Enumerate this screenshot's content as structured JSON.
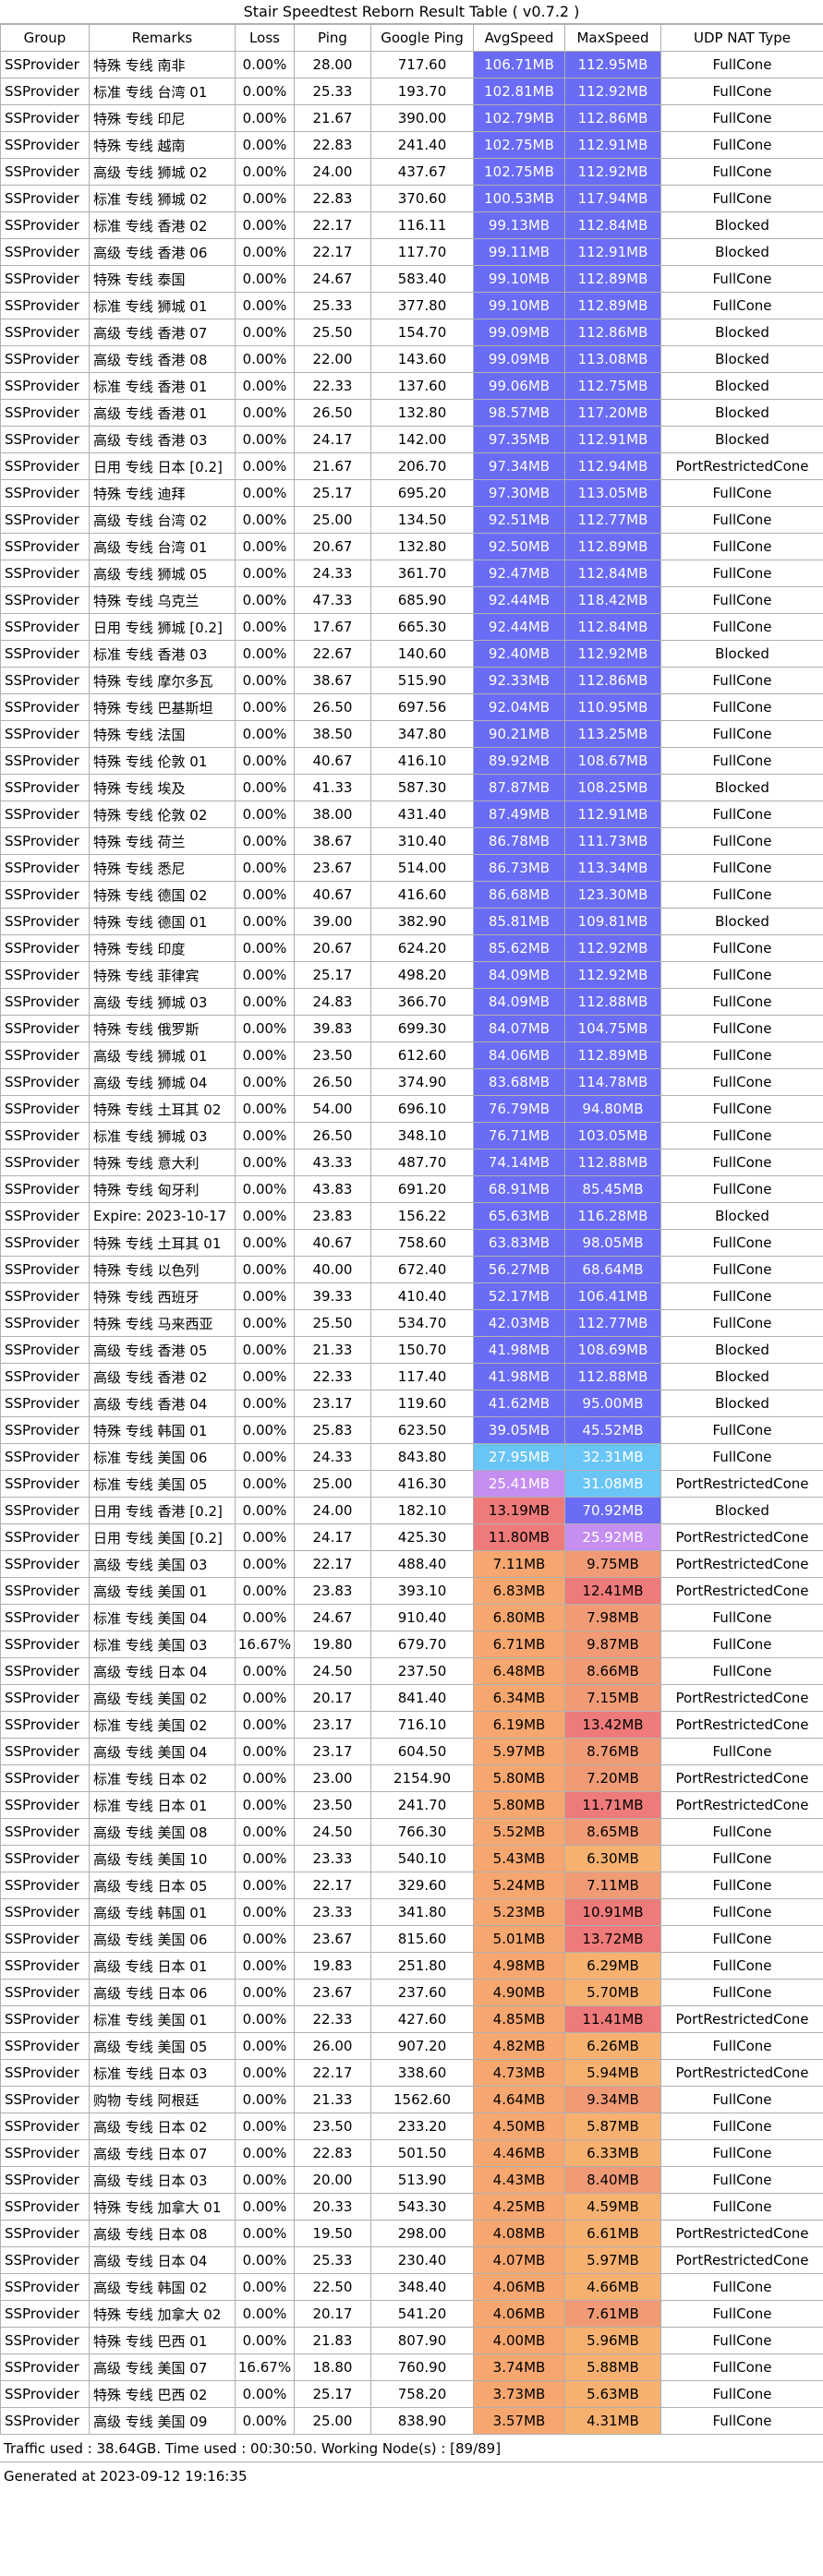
{
  "title": "Stair Speedtest Reborn Result Table ( v0.7.2 )",
  "columns": [
    "Group",
    "Remarks",
    "Loss",
    "Ping",
    "Google Ping",
    "AvgSpeed",
    "MaxSpeed",
    "UDP NAT Type"
  ],
  "colors": {
    "fast_blue": "#6a6cf5",
    "purple": "#c58ef0",
    "light_blue": "#69c5f5",
    "red": "#ee7a7a",
    "salmon": "#f19a76",
    "orange_deep": "#f6a66f",
    "orange": "#f6b170",
    "grid": "#b0b0b0"
  },
  "rows": [
    [
      "SSProvider",
      "特殊 专线 南非",
      "0.00%",
      "28.00",
      "717.60",
      "106.71MB",
      "112.95MB",
      "FullCone"
    ],
    [
      "SSProvider",
      "标准 专线 台湾 01",
      "0.00%",
      "25.33",
      "193.70",
      "102.81MB",
      "112.92MB",
      "FullCone"
    ],
    [
      "SSProvider",
      "特殊 专线 印尼",
      "0.00%",
      "21.67",
      "390.00",
      "102.79MB",
      "112.86MB",
      "FullCone"
    ],
    [
      "SSProvider",
      "特殊 专线 越南",
      "0.00%",
      "22.83",
      "241.40",
      "102.75MB",
      "112.91MB",
      "FullCone"
    ],
    [
      "SSProvider",
      "高级 专线 狮城 02",
      "0.00%",
      "24.00",
      "437.67",
      "102.75MB",
      "112.92MB",
      "FullCone"
    ],
    [
      "SSProvider",
      "标准 专线 狮城 02",
      "0.00%",
      "22.83",
      "370.60",
      "100.53MB",
      "117.94MB",
      "FullCone"
    ],
    [
      "SSProvider",
      "标准 专线 香港 02",
      "0.00%",
      "22.17",
      "116.11",
      "99.13MB",
      "112.84MB",
      "Blocked"
    ],
    [
      "SSProvider",
      "高级 专线 香港 06",
      "0.00%",
      "22.17",
      "117.70",
      "99.11MB",
      "112.91MB",
      "Blocked"
    ],
    [
      "SSProvider",
      "特殊 专线 泰国",
      "0.00%",
      "24.67",
      "583.40",
      "99.10MB",
      "112.89MB",
      "FullCone"
    ],
    [
      "SSProvider",
      "标准 专线 狮城 01",
      "0.00%",
      "25.33",
      "377.80",
      "99.10MB",
      "112.89MB",
      "FullCone"
    ],
    [
      "SSProvider",
      "高级 专线 香港 07",
      "0.00%",
      "25.50",
      "154.70",
      "99.09MB",
      "112.86MB",
      "Blocked"
    ],
    [
      "SSProvider",
      "高级 专线 香港 08",
      "0.00%",
      "22.00",
      "143.60",
      "99.09MB",
      "113.08MB",
      "Blocked"
    ],
    [
      "SSProvider",
      "标准 专线 香港 01",
      "0.00%",
      "22.33",
      "137.60",
      "99.06MB",
      "112.75MB",
      "Blocked"
    ],
    [
      "SSProvider",
      "高级 专线 香港 01",
      "0.00%",
      "26.50",
      "132.80",
      "98.57MB",
      "117.20MB",
      "Blocked"
    ],
    [
      "SSProvider",
      "高级 专线 香港 03",
      "0.00%",
      "24.17",
      "142.00",
      "97.35MB",
      "112.91MB",
      "Blocked"
    ],
    [
      "SSProvider",
      "日用 专线 日本 [0.2]",
      "0.00%",
      "21.67",
      "206.70",
      "97.34MB",
      "112.94MB",
      "PortRestrictedCone"
    ],
    [
      "SSProvider",
      "特殊 专线 迪拜",
      "0.00%",
      "25.17",
      "695.20",
      "97.30MB",
      "113.05MB",
      "FullCone"
    ],
    [
      "SSProvider",
      "高级 专线 台湾 02",
      "0.00%",
      "25.00",
      "134.50",
      "92.51MB",
      "112.77MB",
      "FullCone"
    ],
    [
      "SSProvider",
      "高级 专线 台湾 01",
      "0.00%",
      "20.67",
      "132.80",
      "92.50MB",
      "112.89MB",
      "FullCone"
    ],
    [
      "SSProvider",
      "高级 专线 狮城 05",
      "0.00%",
      "24.33",
      "361.70",
      "92.47MB",
      "112.84MB",
      "FullCone"
    ],
    [
      "SSProvider",
      "特殊 专线 乌克兰",
      "0.00%",
      "47.33",
      "685.90",
      "92.44MB",
      "118.42MB",
      "FullCone"
    ],
    [
      "SSProvider",
      "日用 专线 狮城 [0.2]",
      "0.00%",
      "17.67",
      "665.30",
      "92.44MB",
      "112.84MB",
      "FullCone"
    ],
    [
      "SSProvider",
      "标准 专线 香港 03",
      "0.00%",
      "22.67",
      "140.60",
      "92.40MB",
      "112.92MB",
      "Blocked"
    ],
    [
      "SSProvider",
      "特殊 专线 摩尔多瓦",
      "0.00%",
      "38.67",
      "515.90",
      "92.33MB",
      "112.86MB",
      "FullCone"
    ],
    [
      "SSProvider",
      "特殊 专线 巴基斯坦",
      "0.00%",
      "26.50",
      "697.56",
      "92.04MB",
      "110.95MB",
      "FullCone"
    ],
    [
      "SSProvider",
      "特殊 专线 法国",
      "0.00%",
      "38.50",
      "347.80",
      "90.21MB",
      "113.25MB",
      "FullCone"
    ],
    [
      "SSProvider",
      "特殊 专线 伦敦 01",
      "0.00%",
      "40.67",
      "416.10",
      "89.92MB",
      "108.67MB",
      "FullCone"
    ],
    [
      "SSProvider",
      "特殊 专线 埃及",
      "0.00%",
      "41.33",
      "587.30",
      "87.87MB",
      "108.25MB",
      "Blocked"
    ],
    [
      "SSProvider",
      "特殊 专线 伦敦 02",
      "0.00%",
      "38.00",
      "431.40",
      "87.49MB",
      "112.91MB",
      "FullCone"
    ],
    [
      "SSProvider",
      "特殊 专线 荷兰",
      "0.00%",
      "38.67",
      "310.40",
      "86.78MB",
      "111.73MB",
      "FullCone"
    ],
    [
      "SSProvider",
      "特殊 专线 悉尼",
      "0.00%",
      "23.67",
      "514.00",
      "86.73MB",
      "113.34MB",
      "FullCone"
    ],
    [
      "SSProvider",
      "特殊 专线 德国 02",
      "0.00%",
      "40.67",
      "416.60",
      "86.68MB",
      "123.30MB",
      "FullCone"
    ],
    [
      "SSProvider",
      "特殊 专线 德国 01",
      "0.00%",
      "39.00",
      "382.90",
      "85.81MB",
      "109.81MB",
      "Blocked"
    ],
    [
      "SSProvider",
      "特殊 专线 印度",
      "0.00%",
      "20.67",
      "624.20",
      "85.62MB",
      "112.92MB",
      "FullCone"
    ],
    [
      "SSProvider",
      "特殊 专线 菲律宾",
      "0.00%",
      "25.17",
      "498.20",
      "84.09MB",
      "112.92MB",
      "FullCone"
    ],
    [
      "SSProvider",
      "高级 专线 狮城 03",
      "0.00%",
      "24.83",
      "366.70",
      "84.09MB",
      "112.88MB",
      "FullCone"
    ],
    [
      "SSProvider",
      "特殊 专线 俄罗斯",
      "0.00%",
      "39.83",
      "699.30",
      "84.07MB",
      "104.75MB",
      "FullCone"
    ],
    [
      "SSProvider",
      "高级 专线 狮城 01",
      "0.00%",
      "23.50",
      "612.60",
      "84.06MB",
      "112.89MB",
      "FullCone"
    ],
    [
      "SSProvider",
      "高级 专线 狮城 04",
      "0.00%",
      "26.50",
      "374.90",
      "83.68MB",
      "114.78MB",
      "FullCone"
    ],
    [
      "SSProvider",
      "特殊 专线 土耳其 02",
      "0.00%",
      "54.00",
      "696.10",
      "76.79MB",
      "94.80MB",
      "FullCone"
    ],
    [
      "SSProvider",
      "标准 专线 狮城 03",
      "0.00%",
      "26.50",
      "348.10",
      "76.71MB",
      "103.05MB",
      "FullCone"
    ],
    [
      "SSProvider",
      "特殊 专线 意大利",
      "0.00%",
      "43.33",
      "487.70",
      "74.14MB",
      "112.88MB",
      "FullCone"
    ],
    [
      "SSProvider",
      "特殊 专线 匈牙利",
      "0.00%",
      "43.83",
      "691.20",
      "68.91MB",
      "85.45MB",
      "FullCone"
    ],
    [
      "SSProvider",
      "Expire: 2023-10-17",
      "0.00%",
      "23.83",
      "156.22",
      "65.63MB",
      "116.28MB",
      "Blocked"
    ],
    [
      "SSProvider",
      "特殊 专线 土耳其 01",
      "0.00%",
      "40.67",
      "758.60",
      "63.83MB",
      "98.05MB",
      "FullCone"
    ],
    [
      "SSProvider",
      "特殊 专线 以色列",
      "0.00%",
      "40.00",
      "672.40",
      "56.27MB",
      "68.64MB",
      "FullCone"
    ],
    [
      "SSProvider",
      "特殊 专线 西班牙",
      "0.00%",
      "39.33",
      "410.40",
      "52.17MB",
      "106.41MB",
      "FullCone"
    ],
    [
      "SSProvider",
      "特殊 专线 马来西亚",
      "0.00%",
      "25.50",
      "534.70",
      "42.03MB",
      "112.77MB",
      "FullCone"
    ],
    [
      "SSProvider",
      "高级 专线 香港 05",
      "0.00%",
      "21.33",
      "150.70",
      "41.98MB",
      "108.69MB",
      "Blocked"
    ],
    [
      "SSProvider",
      "高级 专线 香港 02",
      "0.00%",
      "22.33",
      "117.40",
      "41.98MB",
      "112.88MB",
      "Blocked"
    ],
    [
      "SSProvider",
      "高级 专线 香港 04",
      "0.00%",
      "23.17",
      "119.60",
      "41.62MB",
      "95.00MB",
      "Blocked"
    ],
    [
      "SSProvider",
      "特殊 专线 韩国 01",
      "0.00%",
      "25.83",
      "623.50",
      "39.05MB",
      "45.52MB",
      "FullCone"
    ],
    [
      "SSProvider",
      "标准 专线 美国 06",
      "0.00%",
      "24.33",
      "843.80",
      "27.95MB",
      "32.31MB",
      "FullCone"
    ],
    [
      "SSProvider",
      "标准 专线 美国 05",
      "0.00%",
      "25.00",
      "416.30",
      "25.41MB",
      "31.08MB",
      "PortRestrictedCone"
    ],
    [
      "SSProvider",
      "日用 专线 香港 [0.2]",
      "0.00%",
      "24.00",
      "182.10",
      "13.19MB",
      "70.92MB",
      "Blocked"
    ],
    [
      "SSProvider",
      "日用 专线 美国 [0.2]",
      "0.00%",
      "24.17",
      "425.30",
      "11.80MB",
      "25.92MB",
      "PortRestrictedCone"
    ],
    [
      "SSProvider",
      "高级 专线 美国 03",
      "0.00%",
      "22.17",
      "488.40",
      "7.11MB",
      "9.75MB",
      "PortRestrictedCone"
    ],
    [
      "SSProvider",
      "高级 专线 美国 01",
      "0.00%",
      "23.83",
      "393.10",
      "6.83MB",
      "12.41MB",
      "PortRestrictedCone"
    ],
    [
      "SSProvider",
      "标准 专线 美国 04",
      "0.00%",
      "24.67",
      "910.40",
      "6.80MB",
      "7.98MB",
      "FullCone"
    ],
    [
      "SSProvider",
      "标准 专线 美国 03",
      "16.67%",
      "19.80",
      "679.70",
      "6.71MB",
      "9.87MB",
      "FullCone"
    ],
    [
      "SSProvider",
      "高级 专线 日本 04",
      "0.00%",
      "24.50",
      "237.50",
      "6.48MB",
      "8.66MB",
      "FullCone"
    ],
    [
      "SSProvider",
      "高级 专线 美国 02",
      "0.00%",
      "20.17",
      "841.40",
      "6.34MB",
      "7.15MB",
      "PortRestrictedCone"
    ],
    [
      "SSProvider",
      "标准 专线 美国 02",
      "0.00%",
      "23.17",
      "716.10",
      "6.19MB",
      "13.42MB",
      "PortRestrictedCone"
    ],
    [
      "SSProvider",
      "高级 专线 美国 04",
      "0.00%",
      "23.17",
      "604.50",
      "5.97MB",
      "8.76MB",
      "FullCone"
    ],
    [
      "SSProvider",
      "标准 专线 日本 02",
      "0.00%",
      "23.00",
      "2154.90",
      "5.80MB",
      "7.20MB",
      "PortRestrictedCone"
    ],
    [
      "SSProvider",
      "标准 专线 日本 01",
      "0.00%",
      "23.50",
      "241.70",
      "5.80MB",
      "11.71MB",
      "PortRestrictedCone"
    ],
    [
      "SSProvider",
      "高级 专线 美国 08",
      "0.00%",
      "24.50",
      "766.30",
      "5.52MB",
      "8.65MB",
      "FullCone"
    ],
    [
      "SSProvider",
      "高级 专线 美国 10",
      "0.00%",
      "23.33",
      "540.10",
      "5.43MB",
      "6.30MB",
      "FullCone"
    ],
    [
      "SSProvider",
      "高级 专线 日本 05",
      "0.00%",
      "22.17",
      "329.60",
      "5.24MB",
      "7.11MB",
      "FullCone"
    ],
    [
      "SSProvider",
      "高级 专线 韩国 01",
      "0.00%",
      "23.33",
      "341.80",
      "5.23MB",
      "10.91MB",
      "FullCone"
    ],
    [
      "SSProvider",
      "高级 专线 美国 06",
      "0.00%",
      "23.67",
      "815.60",
      "5.01MB",
      "13.72MB",
      "FullCone"
    ],
    [
      "SSProvider",
      "高级 专线 日本 01",
      "0.00%",
      "19.83",
      "251.80",
      "4.98MB",
      "6.29MB",
      "FullCone"
    ],
    [
      "SSProvider",
      "高级 专线 日本 06",
      "0.00%",
      "23.67",
      "237.60",
      "4.90MB",
      "5.70MB",
      "FullCone"
    ],
    [
      "SSProvider",
      "标准 专线 美国 01",
      "0.00%",
      "22.33",
      "427.60",
      "4.85MB",
      "11.41MB",
      "PortRestrictedCone"
    ],
    [
      "SSProvider",
      "高级 专线 美国 05",
      "0.00%",
      "26.00",
      "907.20",
      "4.82MB",
      "6.26MB",
      "FullCone"
    ],
    [
      "SSProvider",
      "标准 专线 日本 03",
      "0.00%",
      "22.17",
      "338.60",
      "4.73MB",
      "5.94MB",
      "PortRestrictedCone"
    ],
    [
      "SSProvider",
      "购物 专线 阿根廷",
      "0.00%",
      "21.33",
      "1562.60",
      "4.64MB",
      "9.34MB",
      "FullCone"
    ],
    [
      "SSProvider",
      "高级 专线 日本 02",
      "0.00%",
      "23.50",
      "233.20",
      "4.50MB",
      "5.87MB",
      "FullCone"
    ],
    [
      "SSProvider",
      "高级 专线 日本 07",
      "0.00%",
      "22.83",
      "501.50",
      "4.46MB",
      "6.33MB",
      "FullCone"
    ],
    [
      "SSProvider",
      "高级 专线 日本 03",
      "0.00%",
      "20.00",
      "513.90",
      "4.43MB",
      "8.40MB",
      "FullCone"
    ],
    [
      "SSProvider",
      "特殊 专线 加拿大 01",
      "0.00%",
      "20.33",
      "543.30",
      "4.25MB",
      "4.59MB",
      "FullCone"
    ],
    [
      "SSProvider",
      "高级 专线 日本 08",
      "0.00%",
      "19.50",
      "298.00",
      "4.08MB",
      "6.61MB",
      "PortRestrictedCone"
    ],
    [
      "SSProvider",
      "高级 专线 日本 04",
      "0.00%",
      "25.33",
      "230.40",
      "4.07MB",
      "5.97MB",
      "PortRestrictedCone"
    ],
    [
      "SSProvider",
      "高级 专线 韩国 02",
      "0.00%",
      "22.50",
      "348.40",
      "4.06MB",
      "4.66MB",
      "FullCone"
    ],
    [
      "SSProvider",
      "特殊 专线 加拿大 02",
      "0.00%",
      "20.17",
      "541.20",
      "4.06MB",
      "7.61MB",
      "FullCone"
    ],
    [
      "SSProvider",
      "特殊 专线 巴西 01",
      "0.00%",
      "21.83",
      "807.90",
      "4.00MB",
      "5.96MB",
      "FullCone"
    ],
    [
      "SSProvider",
      "高级 专线 美国 07",
      "16.67%",
      "18.80",
      "760.90",
      "3.74MB",
      "5.88MB",
      "FullCone"
    ],
    [
      "SSProvider",
      "特殊 专线 巴西 02",
      "0.00%",
      "25.17",
      "758.20",
      "3.73MB",
      "5.63MB",
      "FullCone"
    ],
    [
      "SSProvider",
      "高级 专线 美国 09",
      "0.00%",
      "25.00",
      "838.90",
      "3.57MB",
      "4.31MB",
      "FullCone"
    ]
  ],
  "footer_traffic": "Traffic used : 38.64GB. Time used : 00:30:50. Working Node(s) : [89/89]",
  "footer_generated": "Generated at 2023-09-12 19:16:35"
}
